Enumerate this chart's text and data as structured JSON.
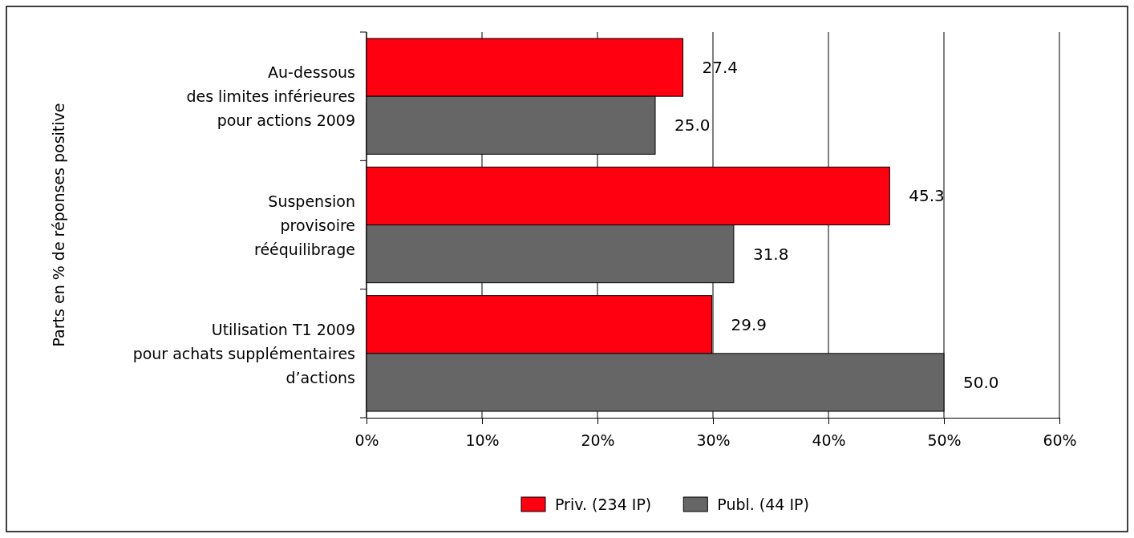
{
  "chart_data": {
    "type": "bar",
    "orientation": "horizontal",
    "ylabel": "Parts en % de réponses positive",
    "categories": [
      "Au-dessous\ndes limites inférieures\npour actions 2009",
      "Suspension\nprovisoire\nrééquilibrage",
      "Utilisation T1 2009\npour achats supplémentaires\nd’actions"
    ],
    "series": [
      {
        "name": "Priv. (234 IP)",
        "color": "#ff0010",
        "values": [
          27.4,
          45.3,
          29.9
        ],
        "value_labels": [
          "27.4",
          "45.3",
          "29.9"
        ]
      },
      {
        "name": "Publ. (44 IP)",
        "color": "#666666",
        "values": [
          25.0,
          31.8,
          50.0
        ],
        "value_labels": [
          "25.0",
          "31.8",
          "50.0"
        ]
      }
    ],
    "xlim": [
      0,
      60
    ],
    "xticks": [
      {
        "value": 0,
        "label": "0%"
      },
      {
        "value": 10,
        "label": "10%"
      },
      {
        "value": 20,
        "label": "20%"
      },
      {
        "value": 30,
        "label": "30%"
      },
      {
        "value": 40,
        "label": "40%"
      },
      {
        "value": 50,
        "label": "50%"
      },
      {
        "value": 60,
        "label": "60%"
      }
    ],
    "grid": "x",
    "legend": "bottom"
  }
}
